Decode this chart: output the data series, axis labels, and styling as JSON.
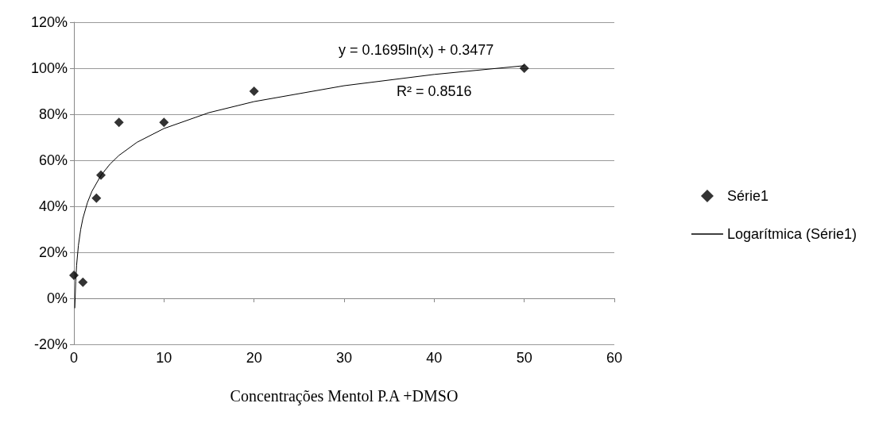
{
  "chart_data": {
    "type": "scatter",
    "xlabel": "Concentrações Mentol P.A +DMSO",
    "series": [
      {
        "name": "Série1",
        "type": "scatter",
        "color": "#000000",
        "marker": "diamond",
        "x": [
          0,
          1,
          2.5,
          3,
          5,
          10,
          20,
          50
        ],
        "values": [
          10,
          7,
          43.5,
          53.5,
          76.5,
          76.5,
          90,
          100
        ]
      },
      {
        "name": "Logarítmica (Série1)",
        "type": "line",
        "color": "#000000",
        "marker": "none",
        "line_style": "solid",
        "x": [
          0.1,
          0.2,
          0.3,
          0.5,
          0.75,
          1,
          1.5,
          2,
          3,
          4,
          5,
          7,
          10,
          15,
          20,
          30,
          40,
          50
        ],
        "values": [
          -4.3,
          7.5,
          14.4,
          23,
          29.9,
          34.8,
          41.6,
          46.5,
          53.4,
          58.3,
          62.1,
          67.8,
          73.8,
          80.7,
          85.5,
          92.4,
          97.3,
          101.1
        ]
      }
    ],
    "xlim": [
      0,
      60
    ],
    "xticks": [
      0,
      10,
      20,
      30,
      40,
      50,
      60
    ],
    "ylim": [
      -20,
      120
    ],
    "yticks": [
      {
        "value": -20,
        "label": "-20%"
      },
      {
        "value": 0,
        "label": "0%"
      },
      {
        "value": 20,
        "label": "20%"
      },
      {
        "value": 40,
        "label": "40%"
      },
      {
        "value": 60,
        "label": "60%"
      },
      {
        "value": 80,
        "label": "80%"
      },
      {
        "value": 100,
        "label": "100%"
      },
      {
        "value": 120,
        "label": "120%"
      }
    ],
    "annotations": [
      "y = 0.1695ln(x) + 0.3477",
      "R² = 0.8516"
    ],
    "grid": "y",
    "legend": "right"
  }
}
